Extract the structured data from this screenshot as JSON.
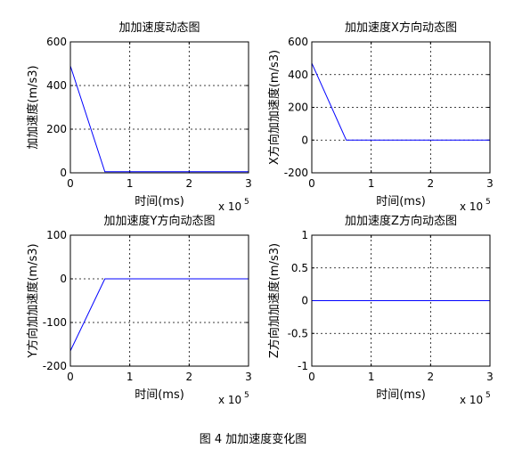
{
  "chart_data": [
    {
      "type": "line",
      "title": "加加速度动态图",
      "x_label": "时间(ms)",
      "y_label": "加加速度(m/s3)",
      "x_multiplier": {
        "base": "x 10",
        "exponent": "5"
      },
      "x": [
        0,
        58000,
        300000
      ],
      "series": [
        {
          "color": "#0000ff",
          "values": [
            490,
            5,
            5
          ]
        }
      ],
      "xlim": [
        0,
        300000
      ],
      "ylim": [
        0,
        600
      ],
      "xticks": [
        {
          "value": 0,
          "label": "0"
        },
        {
          "value": 100000,
          "label": "1"
        },
        {
          "value": 200000,
          "label": "2"
        },
        {
          "value": 300000,
          "label": "3"
        }
      ],
      "yticks": [
        0,
        200,
        400,
        600
      ],
      "grid": true
    },
    {
      "type": "line",
      "title": "加加速度X方向动态图",
      "x_label": "时间(ms)",
      "y_label": "X方向加加速度(m/s3)",
      "x_multiplier": {
        "base": "x 10",
        "exponent": "5"
      },
      "x": [
        0,
        58000,
        300000
      ],
      "series": [
        {
          "color": "#0000ff",
          "values": [
            470,
            0,
            0
          ]
        }
      ],
      "xlim": [
        0,
        300000
      ],
      "ylim": [
        -200,
        600
      ],
      "xticks": [
        {
          "value": 0,
          "label": "0"
        },
        {
          "value": 100000,
          "label": "1"
        },
        {
          "value": 200000,
          "label": "2"
        },
        {
          "value": 300000,
          "label": "3"
        }
      ],
      "yticks": [
        -200,
        0,
        200,
        400,
        600
      ],
      "grid": true
    },
    {
      "type": "line",
      "title": "加加速度Y方向动态图",
      "x_label": "时间(ms)",
      "y_label": "Y方向加加速度(m/s3)",
      "x_multiplier": {
        "base": "x 10",
        "exponent": "5"
      },
      "x": [
        0,
        58000,
        300000
      ],
      "series": [
        {
          "color": "#0000ff",
          "values": [
            -165,
            0,
            0
          ]
        }
      ],
      "xlim": [
        0,
        300000
      ],
      "ylim": [
        -200,
        100
      ],
      "xticks": [
        {
          "value": 0,
          "label": "0"
        },
        {
          "value": 100000,
          "label": "1"
        },
        {
          "value": 200000,
          "label": "2"
        },
        {
          "value": 300000,
          "label": "3"
        }
      ],
      "yticks": [
        -200,
        -100,
        0,
        100
      ],
      "grid": true
    },
    {
      "type": "line",
      "title": "加加速度Z方向动态图",
      "x_label": "时间(ms)",
      "y_label": "Z方向加加速度(m/s3)",
      "x_multiplier": {
        "base": "x 10",
        "exponent": "5"
      },
      "x": [
        0,
        300000
      ],
      "series": [
        {
          "color": "#0000ff",
          "values": [
            0,
            0
          ]
        }
      ],
      "xlim": [
        0,
        300000
      ],
      "ylim": [
        -1,
        1
      ],
      "xticks": [
        {
          "value": 0,
          "label": "0"
        },
        {
          "value": 100000,
          "label": "1"
        },
        {
          "value": 200000,
          "label": "2"
        },
        {
          "value": 300000,
          "label": "3"
        }
      ],
      "yticks": [
        -1,
        -0.5,
        0,
        0.5,
        1
      ],
      "grid": true
    }
  ],
  "caption": "图 4  加加速度变化图"
}
